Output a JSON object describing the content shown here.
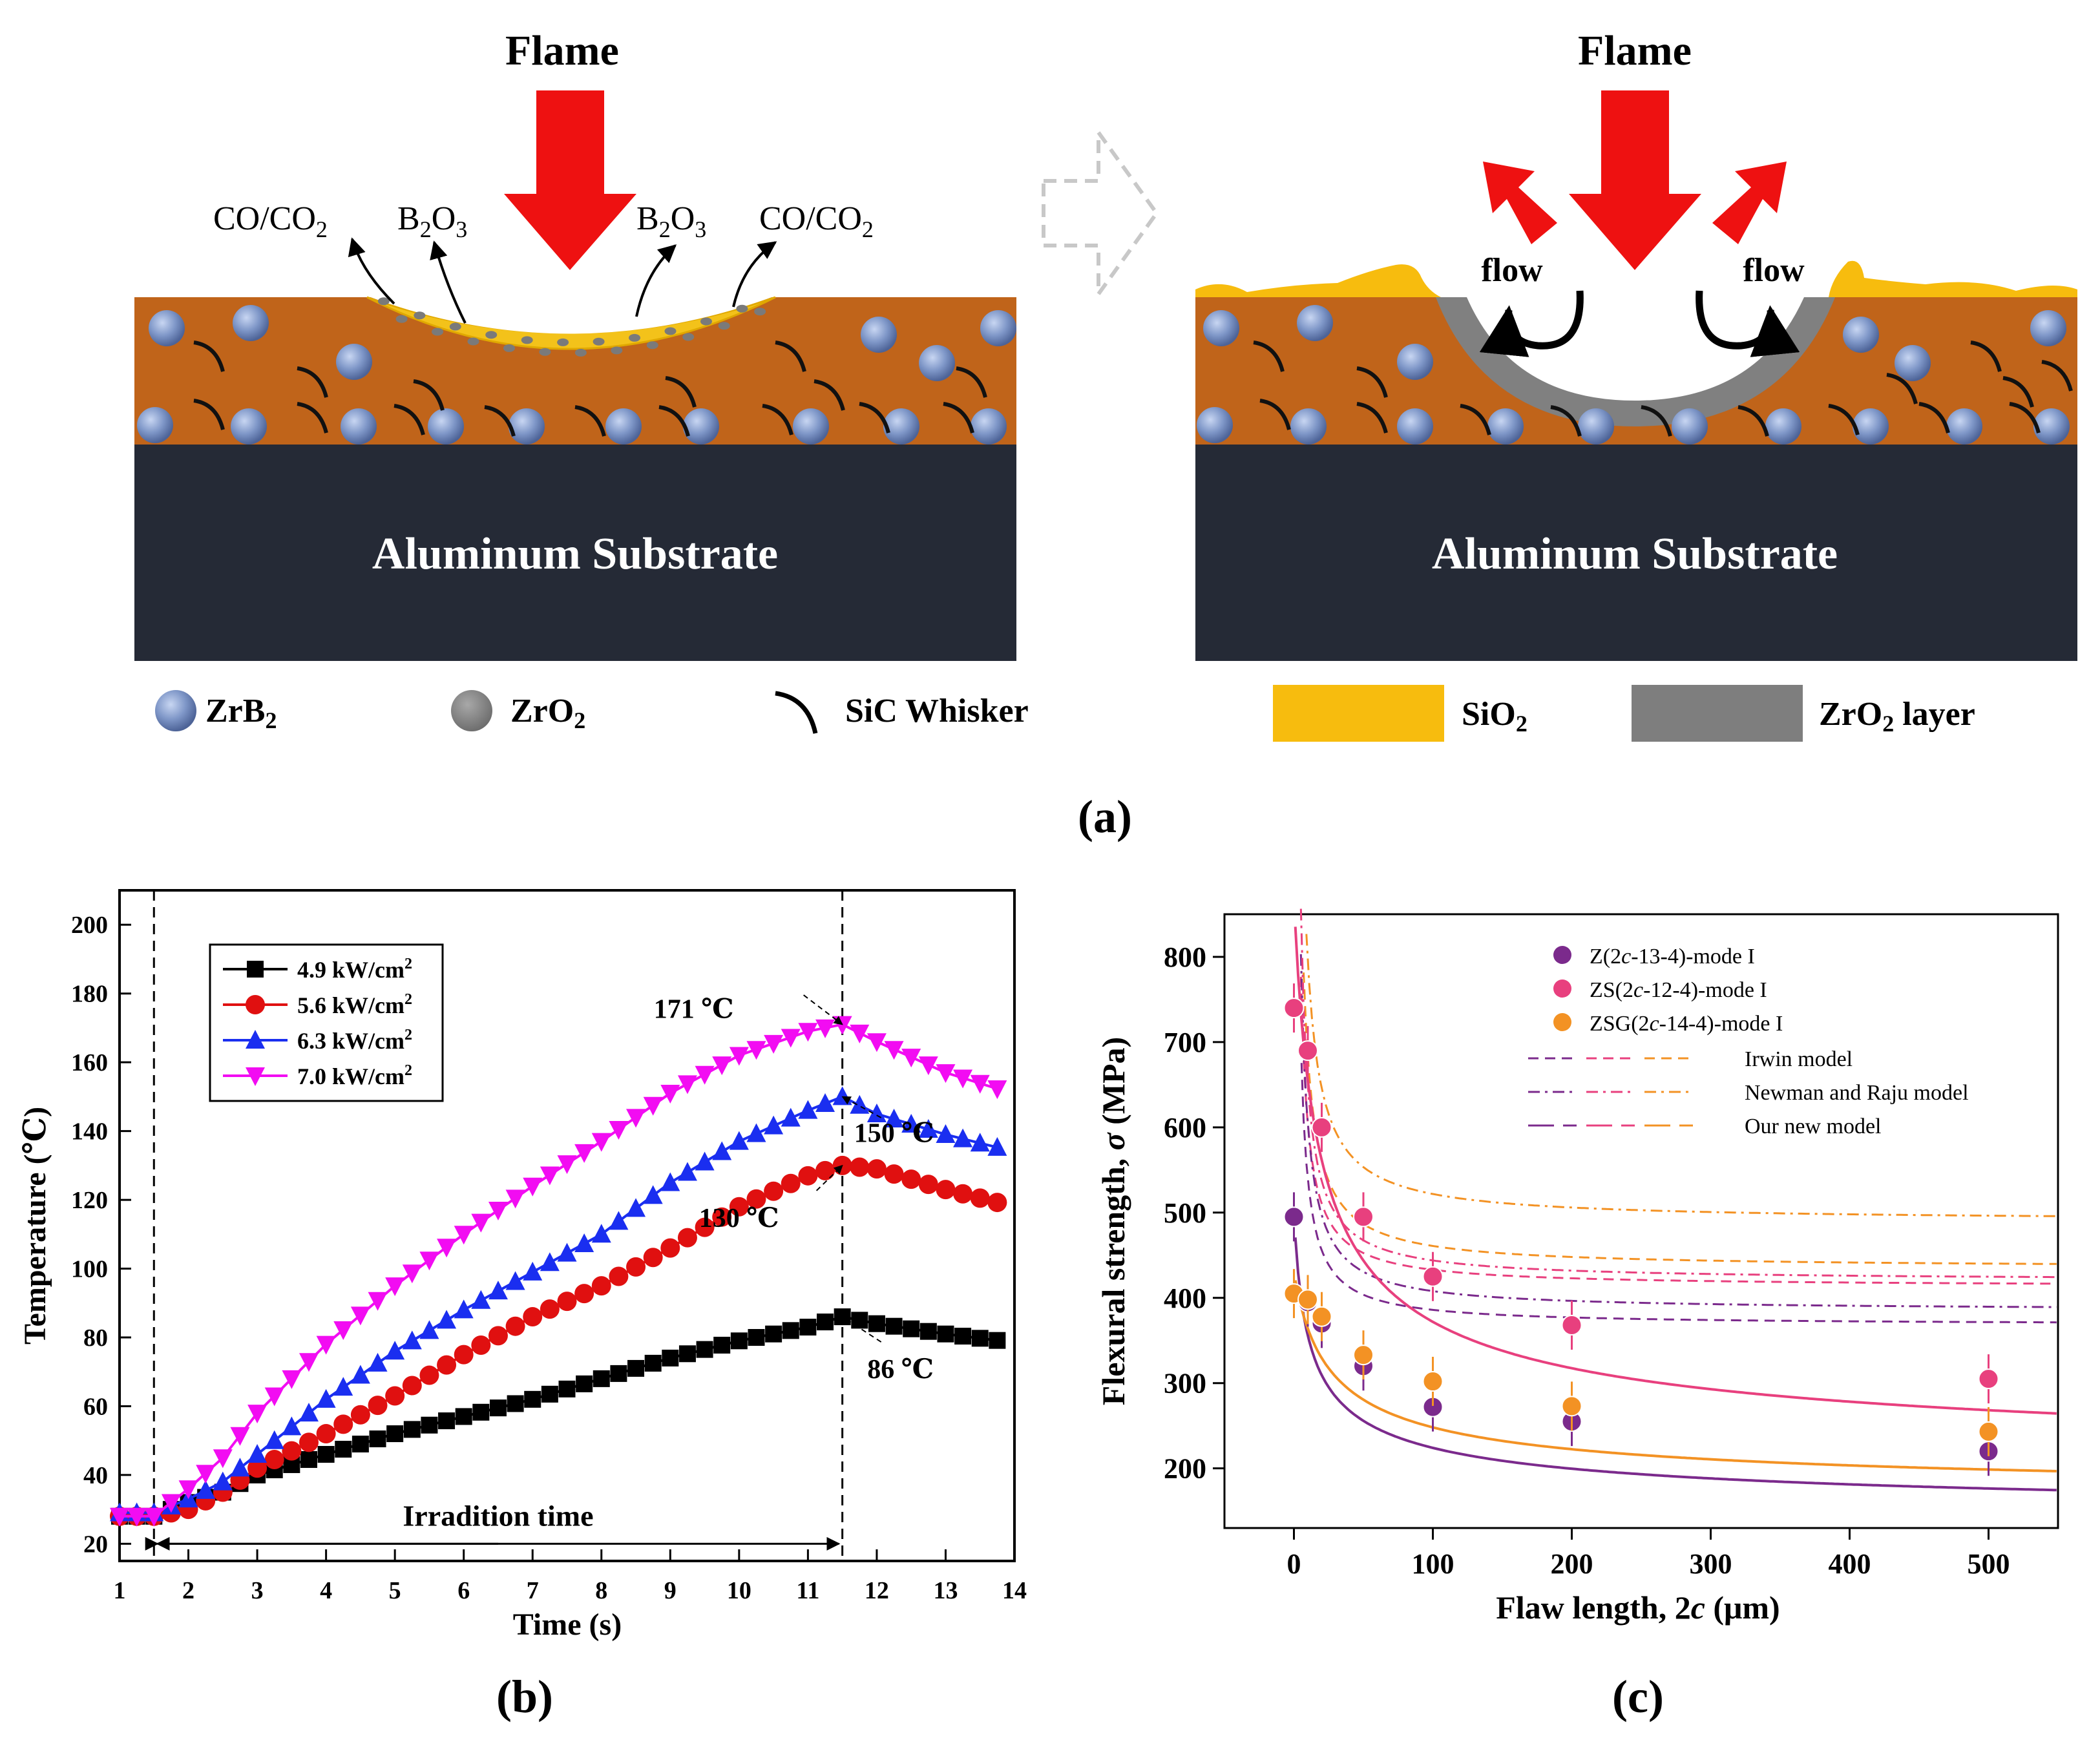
{
  "panel_a": {
    "caption": "(a)",
    "left": {
      "flame": "Flame",
      "gas_co_left": "CO/CO",
      "gas_co_left_sub": "2",
      "gas_b_left": "B",
      "gas_b_left_sub": "2",
      "gas_b_left_rest": "O",
      "gas_b_left_sub2": "3",
      "gas_b_right": "B",
      "gas_b_right_sub": "2",
      "gas_b_right_rest": "O",
      "gas_b_right_sub2": "3",
      "gas_co_right": "CO/CO",
      "gas_co_right_sub": "2",
      "substrate": "Aluminum Substrate"
    },
    "right": {
      "flame": "Flame",
      "flow_left": "flow",
      "flow_right": "flow",
      "substrate": "Aluminum Substrate"
    },
    "legend": {
      "zrb2": "ZrB",
      "zrb2_sub": "2",
      "zro2": "ZrO",
      "zro2_sub": "2",
      "sic": "SiC Whisker",
      "sio2": "SiO",
      "sio2_sub": "2",
      "zro2_layer": "ZrO",
      "zro2_layer_sub": "2",
      "zro2_layer_rest": " layer"
    },
    "colors": {
      "coating": "#c0641a",
      "substrate": "#252a36",
      "flame_arrow": "#ee1111",
      "zrb2": "#7f97c8",
      "zro2": "#808080",
      "sio2": "#f7bc0e",
      "b2o3_melt": "#f3c21a"
    }
  },
  "panel_b": {
    "caption": "(b)",
    "chart_data": {
      "type": "line",
      "xlabel": "Time (s)",
      "ylabel": "Temperature (℃)",
      "xlim": [
        1,
        14
      ],
      "ylim": [
        15,
        210
      ],
      "xticks": [
        "1",
        "2",
        "3",
        "4",
        "5",
        "6",
        "7",
        "8",
        "9",
        "10",
        "11",
        "12",
        "13",
        "14"
      ],
      "yticks": [
        "20",
        "40",
        "60",
        "80",
        "100",
        "120",
        "140",
        "160",
        "180",
        "200"
      ],
      "legend_position": "top-left",
      "series": [
        {
          "name": "4.9 kW/cm",
          "sup": "2",
          "color": "#000000",
          "marker": "square",
          "x": [
            1.0,
            1.5,
            2.0,
            2.5,
            3.0,
            4.0,
            5.0,
            6.0,
            7.0,
            8.0,
            9.0,
            10.0,
            11.0,
            11.5,
            12.0,
            13.0,
            13.8
          ],
          "y": [
            28,
            28,
            32,
            35,
            40,
            46,
            52,
            57,
            62,
            68,
            74,
            79,
            83,
            86,
            84,
            81,
            79
          ]
        },
        {
          "name": "5.6 kW/cm",
          "sup": "2",
          "color": "#e01010",
          "marker": "circle",
          "x": [
            1.0,
            1.5,
            2.0,
            2.5,
            3.0,
            4.0,
            5.0,
            6.0,
            7.0,
            8.0,
            9.0,
            10.0,
            11.0,
            11.5,
            12.0,
            13.0,
            13.8
          ],
          "y": [
            28,
            28,
            30,
            35,
            42,
            52,
            63,
            75,
            86,
            95,
            106,
            118,
            127,
            130,
            129,
            123,
            119
          ]
        },
        {
          "name": "6.3 kW/cm",
          "sup": "2",
          "color": "#1a2ef0",
          "marker": "triangle-up",
          "x": [
            1.0,
            1.5,
            2.0,
            2.5,
            3.0,
            4.0,
            5.0,
            6.0,
            7.0,
            8.0,
            9.0,
            10.0,
            11.0,
            11.5,
            12.0,
            13.0,
            13.8
          ],
          "y": [
            29,
            29,
            33,
            38,
            46,
            62,
            76,
            88,
            99,
            110,
            125,
            137,
            146,
            150,
            145,
            139,
            135
          ]
        },
        {
          "name": "7.0 kW/cm",
          "sup": "2",
          "color": "#f20cf2",
          "marker": "triangle-down",
          "x": [
            1.0,
            1.5,
            2.0,
            2.5,
            3.0,
            4.0,
            5.0,
            6.0,
            7.0,
            8.0,
            9.0,
            10.0,
            11.0,
            11.5,
            12.0,
            13.0,
            13.8
          ],
          "y": [
            28,
            28,
            36,
            45,
            58,
            78,
            95,
            110,
            124,
            137,
            151,
            162,
            169,
            171,
            166,
            157,
            152
          ]
        }
      ],
      "vlines": [
        1.5,
        11.5
      ],
      "annotations": [
        {
          "text": "171 ℃",
          "x": 11.5,
          "y": 171
        },
        {
          "text": "150 ℃",
          "x": 11.5,
          "y": 150
        },
        {
          "text": "130 ℃",
          "x": 11.5,
          "y": 130
        },
        {
          "text": "86 ℃",
          "x": 11.5,
          "y": 86
        }
      ],
      "span_label": "Irradition time"
    }
  },
  "panel_c": {
    "caption": "(c)",
    "chart_data": {
      "type": "scatter",
      "xlabel": "Flaw length, 2",
      "xlabel_italic": "c",
      "xlabel_rest": " (μm)",
      "ylabel": "Flexural strength, ",
      "ylabel_italic": "σ",
      "ylabel_rest": " (MPa)",
      "xlim": [
        -50,
        550
      ],
      "ylim": [
        130,
        850
      ],
      "xticks": [
        "0",
        "100",
        "200",
        "300",
        "400",
        "500"
      ],
      "yticks": [
        "200",
        "300",
        "400",
        "500",
        "600",
        "700",
        "800"
      ],
      "legend_position": "top-right",
      "series": [
        {
          "name_pre": "Z(2",
          "name_it": "c",
          "name_post": "-13-4)-mode I",
          "color": "#7b2a8c",
          "x": [
            0,
            10,
            20,
            50,
            100,
            200,
            500
          ],
          "y": [
            495,
            395,
            370,
            320,
            272,
            255,
            220
          ]
        },
        {
          "name_pre": "ZS(2",
          "name_it": "c",
          "name_post": "-12-4)-mode I",
          "color": "#e8407e",
          "x": [
            0,
            10,
            20,
            50,
            100,
            200,
            500
          ],
          "y": [
            740,
            690,
            600,
            495,
            425,
            368,
            305
          ]
        },
        {
          "name_pre": "ZSG(2",
          "name_it": "c",
          "name_post": "-14-4)-mode I",
          "color": "#f39224",
          "x": [
            0,
            10,
            20,
            50,
            100,
            200,
            500
          ],
          "y": [
            405,
            398,
            378,
            333,
            302,
            273,
            243
          ]
        }
      ],
      "model_legend": [
        "Irwin model",
        "Newman and Raju model",
        "Our new model"
      ]
    }
  }
}
